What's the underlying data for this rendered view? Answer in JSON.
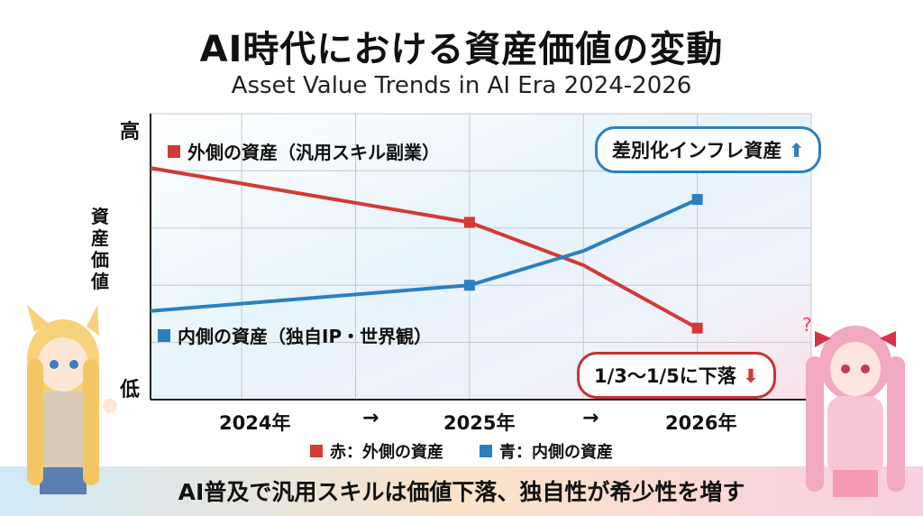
{
  "title": "AI時代における資産価値の変動",
  "subtitle": "Asset Value Trends in AI Era 2024-2026",
  "y_axis": {
    "label": "資産価値",
    "high": "高",
    "low": "低"
  },
  "x_axis": {
    "ticks": [
      "2024年",
      "2025年",
      "2026年"
    ],
    "arrow": "→"
  },
  "series_labels": {
    "outer": "外側の資産（汎用スキル副業）",
    "inner": "内側の資産（独自IP・世界観）"
  },
  "callouts": {
    "inner": "差別化インフレ資産",
    "outer": "1/3〜1/5に下落"
  },
  "legend": {
    "outer": "赤：外側の資産",
    "inner": "青：内側の資産"
  },
  "banner": "AI普及で汎用スキルは価値下落、独自性が希少性を増す",
  "colors": {
    "outer": "#d23a35",
    "inner": "#2b7fc0",
    "grid": "#c8c8c8"
  },
  "chart_data": {
    "type": "line",
    "x": [
      2023.6,
      2025.0,
      2025.5,
      2026.0
    ],
    "ylim": [
      0,
      100
    ],
    "xlim": [
      2023.6,
      2026.5
    ],
    "ylabel": "資産価値",
    "series": [
      {
        "name": "外側の資産（汎用スキル副業）",
        "values": [
          81,
          62,
          47,
          25
        ]
      },
      {
        "name": "内側の資産（独自IP・世界観）",
        "values": [
          31,
          40,
          52,
          70
        ]
      }
    ],
    "markers": {
      "outer": [
        1,
        3
      ],
      "inner": [
        1,
        3
      ]
    },
    "grid": true
  }
}
